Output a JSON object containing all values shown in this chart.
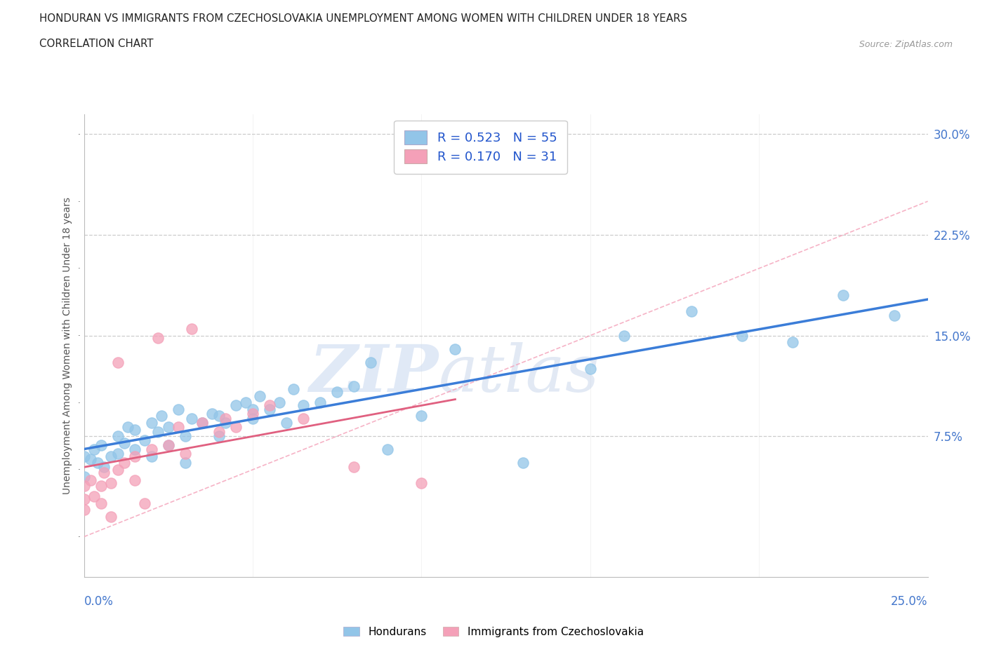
{
  "title_line1": "HONDURAN VS IMMIGRANTS FROM CZECHOSLOVAKIA UNEMPLOYMENT AMONG WOMEN WITH CHILDREN UNDER 18 YEARS",
  "title_line2": "CORRELATION CHART",
  "source": "Source: ZipAtlas.com",
  "ylabel": "Unemployment Among Women with Children Under 18 years",
  "ytick_vals": [
    0.075,
    0.15,
    0.225,
    0.3
  ],
  "ytick_labels": [
    "7.5%",
    "15.0%",
    "22.5%",
    "30.0%"
  ],
  "xlim": [
    0.0,
    0.25
  ],
  "ylim": [
    -0.03,
    0.315
  ],
  "legend_r1": "R = 0.523   N = 55",
  "legend_r2": "R = 0.170   N = 31",
  "honduran_color": "#92C5E8",
  "czech_color": "#F4A0B8",
  "regression_honduran_color": "#3B7DD8",
  "regression_czech_color": "#E06080",
  "diagonal_color": "#F4A0B8",
  "watermark_zip": "ZIP",
  "watermark_atlas": "atlas",
  "hondurans_x": [
    0.0,
    0.0,
    0.002,
    0.003,
    0.004,
    0.005,
    0.006,
    0.008,
    0.01,
    0.01,
    0.012,
    0.013,
    0.015,
    0.015,
    0.018,
    0.02,
    0.02,
    0.022,
    0.023,
    0.025,
    0.025,
    0.028,
    0.03,
    0.03,
    0.032,
    0.035,
    0.038,
    0.04,
    0.04,
    0.042,
    0.045,
    0.048,
    0.05,
    0.05,
    0.052,
    0.055,
    0.058,
    0.06,
    0.062,
    0.065,
    0.07,
    0.075,
    0.08,
    0.085,
    0.09,
    0.1,
    0.11,
    0.13,
    0.15,
    0.16,
    0.18,
    0.195,
    0.21,
    0.225,
    0.24
  ],
  "hondurans_y": [
    0.045,
    0.06,
    0.058,
    0.065,
    0.055,
    0.068,
    0.052,
    0.06,
    0.062,
    0.075,
    0.07,
    0.082,
    0.065,
    0.08,
    0.072,
    0.06,
    0.085,
    0.078,
    0.09,
    0.068,
    0.082,
    0.095,
    0.055,
    0.075,
    0.088,
    0.085,
    0.092,
    0.075,
    0.09,
    0.085,
    0.098,
    0.1,
    0.088,
    0.095,
    0.105,
    0.095,
    0.1,
    0.085,
    0.11,
    0.098,
    0.1,
    0.108,
    0.112,
    0.13,
    0.065,
    0.09,
    0.14,
    0.055,
    0.125,
    0.15,
    0.168,
    0.15,
    0.145,
    0.18,
    0.165
  ],
  "czech_x": [
    0.0,
    0.0,
    0.0,
    0.002,
    0.003,
    0.005,
    0.005,
    0.006,
    0.008,
    0.008,
    0.01,
    0.01,
    0.012,
    0.015,
    0.015,
    0.018,
    0.02,
    0.022,
    0.025,
    0.028,
    0.03,
    0.032,
    0.035,
    0.04,
    0.042,
    0.045,
    0.05,
    0.055,
    0.065,
    0.08,
    0.1
  ],
  "czech_y": [
    0.028,
    0.038,
    0.02,
    0.042,
    0.03,
    0.038,
    0.025,
    0.048,
    0.04,
    0.015,
    0.05,
    0.13,
    0.055,
    0.042,
    0.06,
    0.025,
    0.065,
    0.148,
    0.068,
    0.082,
    0.062,
    0.155,
    0.085,
    0.078,
    0.088,
    0.082,
    0.092,
    0.098,
    0.088,
    0.052,
    0.04
  ]
}
